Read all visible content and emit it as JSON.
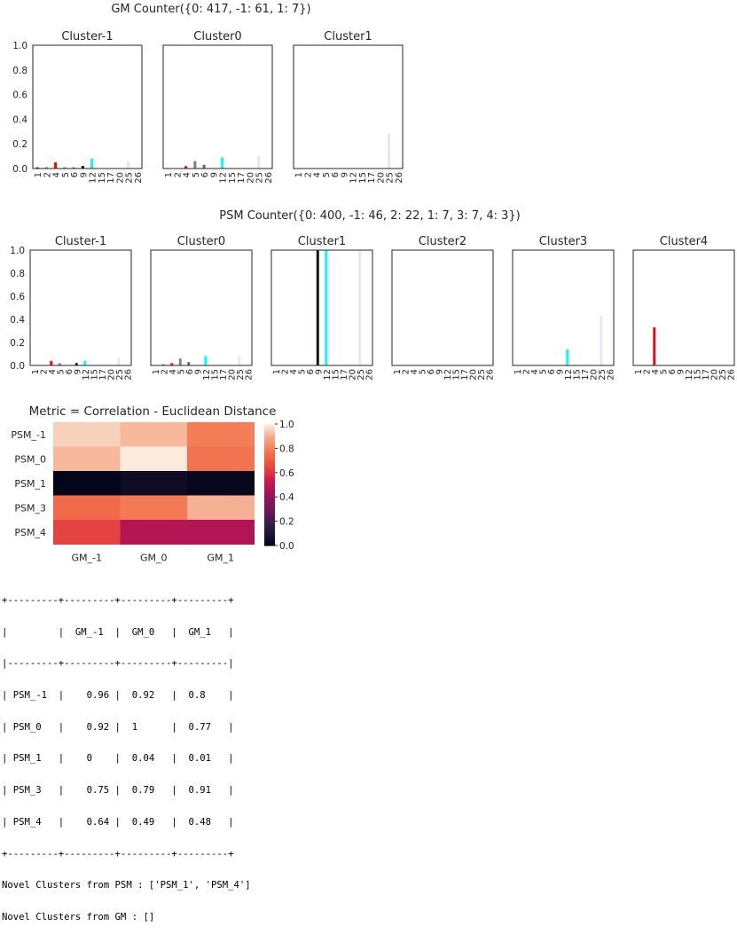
{
  "categories": [
    "1",
    "2",
    "4",
    "5",
    "6",
    "9",
    "12",
    "15",
    "17",
    "20",
    "25",
    "26"
  ],
  "colors": [
    "#0000cd",
    "#2ca02c",
    "#ff0000",
    "#808080",
    "#696969",
    "#000000",
    "#00ffff",
    "#1e90ff",
    "#6495ed",
    "#b0c4de",
    "#e6e6fa",
    "#e6e6fa"
  ],
  "gm": {
    "title": "GM Counter({0: 417, -1: 61, 1: 7})",
    "panels": [
      {
        "title": "Cluster-1",
        "values": [
          0.01,
          0.01,
          0.05,
          0.01,
          0.01,
          0.02,
          0.08,
          0,
          0,
          0,
          0.06,
          0
        ]
      },
      {
        "title": "Cluster0",
        "values": [
          0,
          0,
          0.02,
          0.06,
          0.03,
          0,
          0.09,
          0,
          0,
          0,
          0.1,
          0
        ]
      },
      {
        "title": "Cluster1",
        "values": [
          0,
          0,
          0,
          0,
          0,
          0,
          0,
          0,
          0,
          0,
          0.28,
          0
        ]
      }
    ]
  },
  "psm": {
    "title": "PSM Counter({0: 400, -1: 46, 2: 22, 1: 7, 3: 7, 4: 3})",
    "panels": [
      {
        "title": "Cluster-1",
        "values": [
          0,
          0,
          0.04,
          0.02,
          0,
          0.02,
          0.04,
          0,
          0,
          0,
          0.06,
          0
        ]
      },
      {
        "title": "Cluster0",
        "values": [
          0,
          0.01,
          0.02,
          0.06,
          0.03,
          0,
          0.08,
          0,
          0,
          0,
          0.08,
          0
        ]
      },
      {
        "title": "Cluster1",
        "values": [
          0,
          0,
          0,
          0,
          0,
          1.0,
          1.0,
          0,
          0,
          0,
          1.0,
          0
        ]
      },
      {
        "title": "Cluster2",
        "values": [
          0,
          0,
          0,
          0,
          0,
          0,
          0,
          0,
          0,
          0,
          0,
          0
        ]
      },
      {
        "title": "Cluster3",
        "values": [
          0,
          0,
          0,
          0,
          0,
          0,
          0.14,
          0,
          0,
          0,
          0.43,
          0
        ]
      },
      {
        "title": "Cluster4",
        "values": [
          0,
          0,
          0.33,
          0,
          0,
          0,
          0,
          0,
          0,
          0,
          0,
          0
        ]
      }
    ]
  },
  "yticks": [
    "0.0",
    "0.2",
    "0.4",
    "0.6",
    "0.8",
    "1.0"
  ],
  "chart_data": {
    "type": "heatmap",
    "title": "Metric = Correlation - Euclidean Distance",
    "rows": [
      "PSM_-1",
      "PSM_0",
      "PSM_1",
      "PSM_3",
      "PSM_4"
    ],
    "columns": [
      "GM_-1",
      "GM_0",
      "GM_1"
    ],
    "values": [
      [
        0.96,
        0.92,
        0.8
      ],
      [
        0.92,
        1,
        0.77
      ],
      [
        0,
        0.04,
        0.01
      ],
      [
        0.75,
        0.79,
        0.91
      ],
      [
        0.64,
        0.49,
        0.48
      ]
    ],
    "colorbar_ticks": [
      "0.0",
      "0.2",
      "0.4",
      "0.6",
      "0.8",
      "1.0"
    ],
    "colorbar_range": [
      0,
      1
    ]
  },
  "table": {
    "lines": [
      "+---------+---------+---------+---------+",
      "|         |  GM_-1  |  GM_0   |  GM_1   |",
      "|---------+---------+---------+---------|",
      "| PSM_-1  |    0.96 |  0.92   |  0.8    |",
      "| PSM_0   |    0.92 |  1      |  0.77   |",
      "| PSM_1   |    0    |  0.04   |  0.01   |",
      "| PSM_3   |    0.75 |  0.79   |  0.91   |",
      "| PSM_4   |    0.64 |  0.49   |  0.48   |",
      "+---------+---------+---------+---------+"
    ]
  },
  "novel": {
    "psm": "Novel Clusters from PSM : ['PSM_1', 'PSM_4']",
    "gm": "Novel Clusters from GM : []"
  }
}
